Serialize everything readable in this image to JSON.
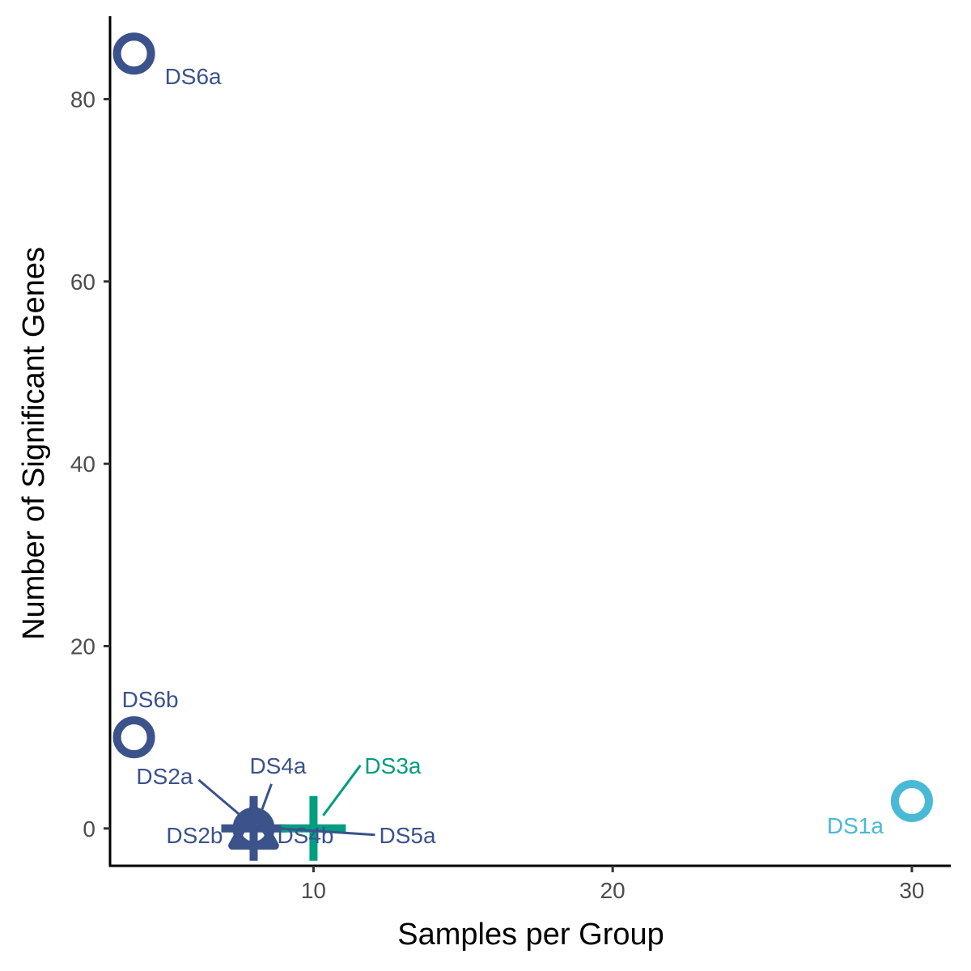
{
  "chart_data": {
    "type": "scatter",
    "title": "",
    "xlabel": "Samples per Group",
    "ylabel": "Number of Significant Genes",
    "xlim": [
      3.2,
      31.3
    ],
    "ylim": [
      -4.1,
      89.1
    ],
    "x_ticks": [
      10,
      20,
      30
    ],
    "y_ticks": [
      0,
      20,
      40,
      60,
      80
    ],
    "grid": false,
    "legend": "none",
    "points": [
      {
        "label": "DS6a",
        "x": 4,
        "y": 85,
        "shape": "circle",
        "color": "#3b528b"
      },
      {
        "label": "DS6b",
        "x": 4,
        "y": 10,
        "shape": "circle",
        "color": "#3b528b"
      },
      {
        "label": "DS2a",
        "x": 8,
        "y": 0,
        "shape": "triangle",
        "color": "#3b528b"
      },
      {
        "label": "DS4a",
        "x": 8,
        "y": 0,
        "shape": "circle",
        "color": "#3b528b"
      },
      {
        "label": "DS2b",
        "x": 8,
        "y": 0,
        "shape": "triangle",
        "color": "#3b528b"
      },
      {
        "label": "DS4b",
        "x": 8,
        "y": 0,
        "shape": "plus",
        "color": "#3b528b"
      },
      {
        "label": "DS5a",
        "x": 8,
        "y": 0,
        "shape": "triangle",
        "color": "#3b528b"
      },
      {
        "label": "DS3a",
        "x": 10,
        "y": 0,
        "shape": "plus",
        "color": "#009e80"
      },
      {
        "label": "DS1a",
        "x": 30,
        "y": 3,
        "shape": "circle",
        "color": "#4ab9d6"
      }
    ]
  }
}
